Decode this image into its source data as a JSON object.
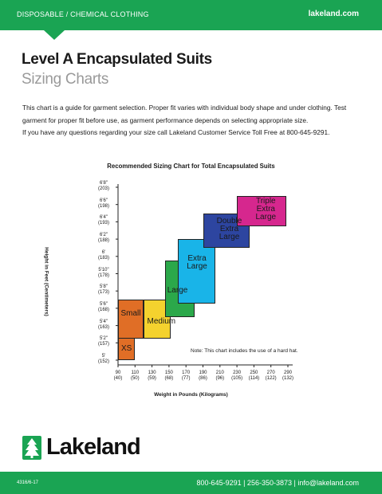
{
  "header": {
    "category": "DISPOSABLE / CHEMICAL CLOTHING",
    "site": "lakeland.com"
  },
  "title": {
    "main": "Level A Encapsulated Suits",
    "sub": "Sizing Charts"
  },
  "intro": {
    "line1": "This chart is a guide for garment selection. Proper fit varies with individual body shape and under clothing. Test",
    "line2": "garment for proper fit before use, as garment performance depends on selecting appropriate size.",
    "line3": "If you have any questions regarding your size call Lakeland Customer Service Toll Free at 800-645-9291."
  },
  "chart_data": {
    "type": "other",
    "title": "Recommended Sizing Chart for Total Encapsulated Suits",
    "xlabel": "Weight in Pounds (Kilograms)",
    "ylabel": "Height in Feet (Centimeters)",
    "note": "Note: This chart includes the use of a hard hat.",
    "x_ticks": [
      {
        "value": 90,
        "top": "90",
        "bottom": "(40)"
      },
      {
        "value": 110,
        "top": "110",
        "bottom": "(50)"
      },
      {
        "value": 130,
        "top": "130",
        "bottom": "(59)"
      },
      {
        "value": 150,
        "top": "150",
        "bottom": "(68)"
      },
      {
        "value": 170,
        "top": "170",
        "bottom": "(77)"
      },
      {
        "value": 190,
        "top": "190",
        "bottom": "(86)"
      },
      {
        "value": 210,
        "top": "210",
        "bottom": "(96)"
      },
      {
        "value": 230,
        "top": "230",
        "bottom": "(105)"
      },
      {
        "value": 250,
        "top": "250",
        "bottom": "(114)"
      },
      {
        "value": 270,
        "top": "270",
        "bottom": "(122)"
      },
      {
        "value": 290,
        "top": "290",
        "bottom": "(132)"
      }
    ],
    "y_ticks": [
      {
        "value": 60,
        "top": "5'",
        "bottom": "(152)"
      },
      {
        "value": 62,
        "top": "5'2\"",
        "bottom": "(157)"
      },
      {
        "value": 64,
        "top": "5'4\"",
        "bottom": "(163)"
      },
      {
        "value": 66,
        "top": "5'6\"",
        "bottom": "(168)"
      },
      {
        "value": 68,
        "top": "5'8\"",
        "bottom": "(173)"
      },
      {
        "value": 70,
        "top": "5'10\"",
        "bottom": "(178)"
      },
      {
        "value": 72,
        "top": "6'",
        "bottom": "(183)"
      },
      {
        "value": 74,
        "top": "6'2\"",
        "bottom": "(188)"
      },
      {
        "value": 76,
        "top": "6'4\"",
        "bottom": "(193)"
      },
      {
        "value": 78,
        "top": "6'6\"",
        "bottom": "(198)"
      },
      {
        "value": 80,
        "top": "6'8\"",
        "bottom": "(203)"
      }
    ],
    "sizes": [
      {
        "name": "XS",
        "lines": [
          "XS"
        ],
        "x": [
          90,
          110
        ],
        "y": [
          60,
          63.5
        ],
        "color": "#e06e26"
      },
      {
        "name": "Small",
        "lines": [
          "Small"
        ],
        "x": [
          90,
          120
        ],
        "y": [
          62.5,
          67
        ],
        "color": "#e06e26"
      },
      {
        "name": "Medium",
        "lines": [
          "Medium"
        ],
        "x": [
          120,
          152
        ],
        "y": [
          62.5,
          67
        ],
        "color": "#f4d22e"
      },
      {
        "name": "Large",
        "lines": [
          "Large"
        ],
        "x": [
          145,
          180
        ],
        "y": [
          65,
          71.5
        ],
        "color": "#2ba84a"
      },
      {
        "name": "Extra Large",
        "lines": [
          "Extra",
          "Large"
        ],
        "x": [
          160,
          205
        ],
        "y": [
          66.5,
          74
        ],
        "color": "#19b4e8"
      },
      {
        "name": "Double Extra Large",
        "lines": [
          "Double",
          "Extra",
          "Large"
        ],
        "x": [
          190,
          245
        ],
        "y": [
          73,
          77
        ],
        "color": "#2d45a0"
      },
      {
        "name": "Triple Extra Large",
        "lines": [
          "Triple",
          "Extra",
          "Large"
        ],
        "x": [
          230,
          288
        ],
        "y": [
          75.5,
          79
        ],
        "color": "#d6278e"
      }
    ],
    "grid": false
  },
  "logo": {
    "word": "Lakeland"
  },
  "footer": {
    "code": "4316/6-17",
    "contact": "800-645-9291 | 256-350-3873 | info@lakeland.com"
  }
}
